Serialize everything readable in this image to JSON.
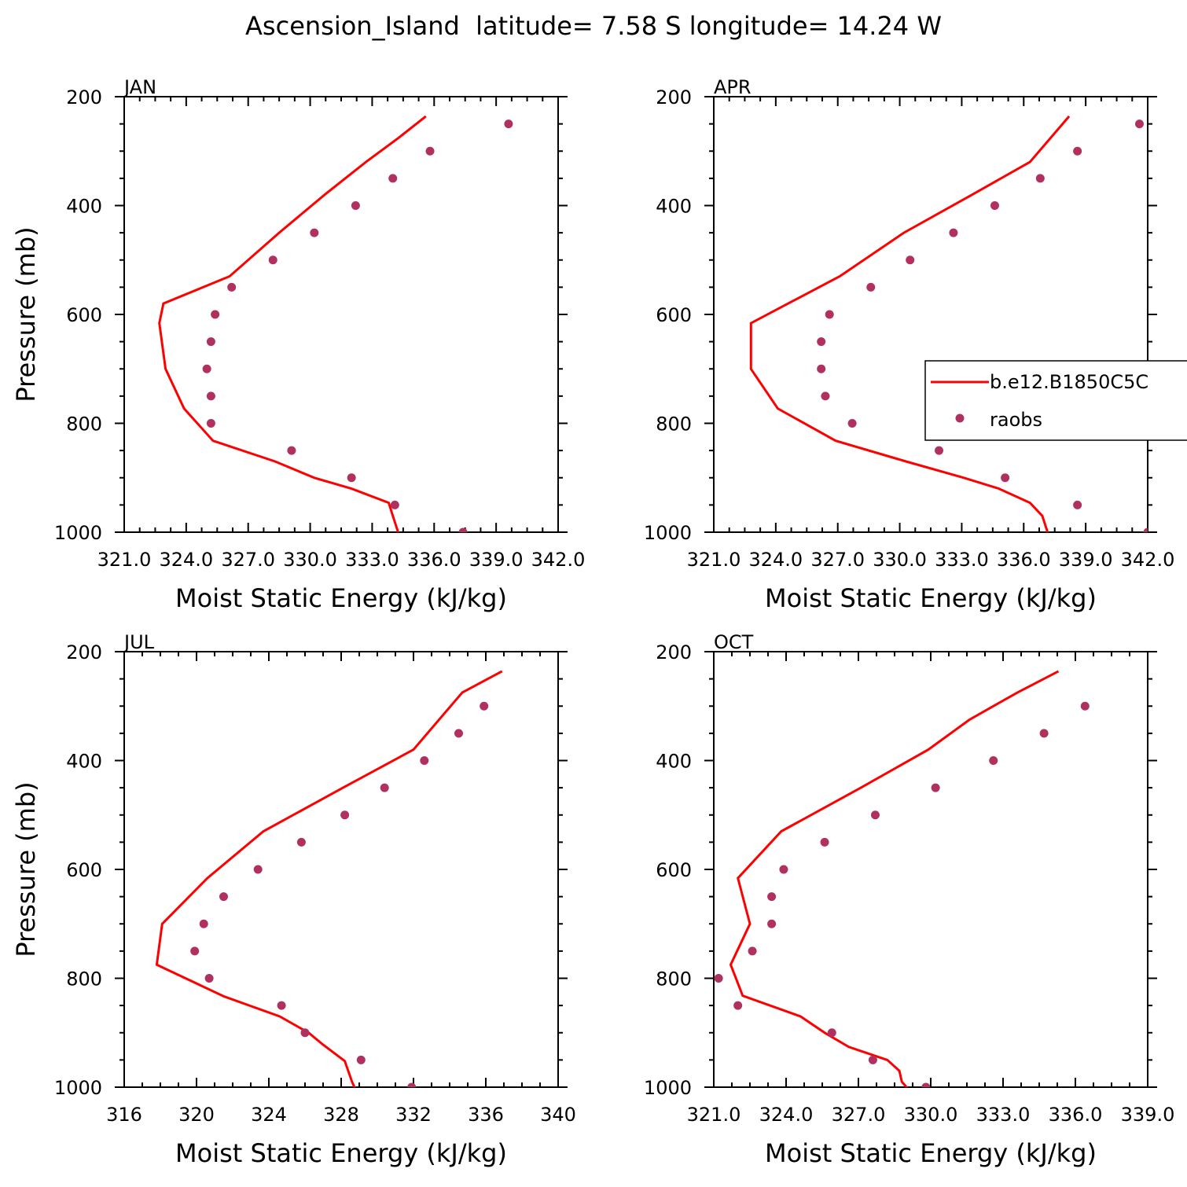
{
  "figure": {
    "title": "Ascension_Island  latitude= 7.58 S longitude= 14.24 W"
  },
  "colors": {
    "model": "#ff0000",
    "obs": "#b03060"
  },
  "legend": {
    "model_label": "b.e12.B1850C5C",
    "obs_label": "raobs"
  },
  "chart_data": [
    {
      "type": "line",
      "panel": "JAN",
      "xlabel": "Moist Static Energy (kJ/kg)",
      "ylabel": "Pressure (mb)",
      "xlim": [
        321.0,
        342.0
      ],
      "ylim": [
        1000,
        200
      ],
      "xticks": [
        321.0,
        324.0,
        327.0,
        330.0,
        333.0,
        336.0,
        339.0,
        342.0
      ],
      "xtick_labels": [
        "321.0",
        "324.0",
        "327.0",
        "330.0",
        "333.0",
        "336.0",
        "339.0",
        "342.0"
      ],
      "yticks": [
        200,
        400,
        600,
        800,
        1000
      ],
      "series": [
        {
          "name": "b.e12.B1850C5C",
          "kind": "line",
          "x": [
            334.3,
            334.0,
            333.8,
            332.0,
            330.2,
            328.3,
            325.3,
            323.9,
            323.0,
            322.7,
            322.9,
            326.1,
            328.5,
            330.7,
            332.7,
            334.3,
            335.6
          ],
          "y": [
            1005,
            970,
            946,
            920,
            900,
            870,
            832,
            773,
            700,
            616,
            580,
            530,
            450,
            380,
            320,
            275,
            236
          ]
        },
        {
          "name": "raobs",
          "kind": "scatter",
          "x": [
            337.4,
            334.1,
            332.0,
            329.1,
            325.2,
            325.2,
            325.0,
            325.2,
            325.4,
            326.2,
            328.2,
            330.2,
            332.2,
            334.0,
            335.8,
            339.6
          ],
          "y": [
            1000,
            950,
            900,
            850,
            800,
            750,
            700,
            650,
            600,
            550,
            500,
            450,
            400,
            350,
            300,
            250
          ]
        }
      ]
    },
    {
      "type": "line",
      "panel": "APR",
      "xlabel": "Moist Static Energy (kJ/kg)",
      "ylabel": "Pressure (mb)",
      "xlim": [
        321.0,
        342.0
      ],
      "ylim": [
        1000,
        200
      ],
      "xticks": [
        321.0,
        324.0,
        327.0,
        330.0,
        333.0,
        336.0,
        339.0,
        342.0
      ],
      "xtick_labels": [
        "321.0",
        "324.0",
        "327.0",
        "330.0",
        "333.0",
        "336.0",
        "339.0",
        "342.0"
      ],
      "yticks": [
        200,
        400,
        600,
        800,
        1000
      ],
      "series": [
        {
          "name": "b.e12.B1850C5C",
          "kind": "line",
          "x": [
            337.2,
            336.9,
            336.3,
            334.8,
            333.1,
            330.3,
            326.9,
            324.1,
            322.8,
            322.8,
            324.6,
            327.1,
            330.2,
            333.5,
            336.3,
            338.2
          ],
          "y": [
            1005,
            970,
            946,
            920,
            900,
            870,
            832,
            773,
            700,
            616,
            580,
            530,
            450,
            380,
            320,
            236
          ]
        },
        {
          "name": "raobs",
          "kind": "scatter",
          "x": [
            342.0,
            338.6,
            335.1,
            331.9,
            327.7,
            326.4,
            326.2,
            326.2,
            326.6,
            328.6,
            330.5,
            332.6,
            334.6,
            336.8,
            338.6,
            341.6
          ],
          "y": [
            1000,
            950,
            900,
            850,
            800,
            750,
            700,
            650,
            600,
            550,
            500,
            450,
            400,
            350,
            300,
            250
          ]
        }
      ]
    },
    {
      "type": "line",
      "panel": "JUL",
      "xlabel": "Moist Static Energy (kJ/kg)",
      "ylabel": "Pressure (mb)",
      "xlim": [
        316,
        340
      ],
      "ylim": [
        1000,
        200
      ],
      "xticks": [
        316,
        320,
        324,
        328,
        332,
        336,
        340
      ],
      "xtick_labels": [
        "316",
        "320",
        "324",
        "328",
        "332",
        "336",
        "340"
      ],
      "yticks": [
        200,
        400,
        600,
        800,
        1000
      ],
      "series": [
        {
          "name": "b.e12.B1850C5C",
          "kind": "line",
          "x": [
            328.8,
            328.6,
            328.2,
            327.0,
            326.2,
            324.6,
            321.5,
            317.8,
            318.1,
            320.6,
            323.7,
            328.1,
            332.0,
            334.7,
            336.9
          ],
          "y": [
            1005,
            990,
            952,
            922,
            900,
            870,
            833,
            775,
            700,
            616,
            530,
            450,
            380,
            275,
            236
          ]
        },
        {
          "name": "raobs",
          "kind": "scatter",
          "x": [
            331.9,
            329.1,
            326.0,
            324.7,
            320.7,
            319.9,
            320.4,
            321.5,
            323.4,
            325.8,
            328.2,
            330.4,
            332.6,
            334.5,
            335.9
          ],
          "y": [
            1000,
            950,
            900,
            850,
            800,
            750,
            700,
            650,
            600,
            550,
            500,
            450,
            400,
            350,
            300
          ]
        }
      ]
    },
    {
      "type": "line",
      "panel": "OCT",
      "xlabel": "Moist Static Energy (kJ/kg)",
      "ylabel": "Pressure (mb)",
      "xlim": [
        321.0,
        339.0
      ],
      "ylim": [
        1000,
        200
      ],
      "xticks": [
        321.0,
        324.0,
        327.0,
        330.0,
        333.0,
        336.0,
        339.0
      ],
      "xtick_labels": [
        "321.0",
        "324.0",
        "327.0",
        "330.0",
        "333.0",
        "336.0",
        "339.0"
      ],
      "yticks": [
        200,
        400,
        600,
        800,
        1000
      ],
      "series": [
        {
          "name": "b.e12.B1850C5C",
          "kind": "line",
          "x": [
            329.1,
            328.8,
            328.7,
            328.2,
            326.6,
            325.6,
            324.6,
            322.2,
            321.7,
            322.5,
            322.0,
            323.8,
            327.1,
            329.9,
            331.6,
            333.6,
            335.3
          ],
          "y": [
            1005,
            990,
            970,
            950,
            926,
            900,
            870,
            832,
            775,
            700,
            616,
            530,
            450,
            380,
            325,
            275,
            236
          ]
        },
        {
          "name": "raobs",
          "kind": "scatter",
          "x": [
            329.8,
            327.6,
            325.9,
            322.0,
            321.2,
            322.6,
            323.4,
            323.4,
            323.9,
            325.6,
            327.7,
            330.2,
            332.6,
            334.7,
            336.4
          ],
          "y": [
            1000,
            950,
            900,
            850,
            800,
            750,
            700,
            650,
            600,
            550,
            500,
            450,
            400,
            350,
            300
          ]
        }
      ]
    }
  ]
}
